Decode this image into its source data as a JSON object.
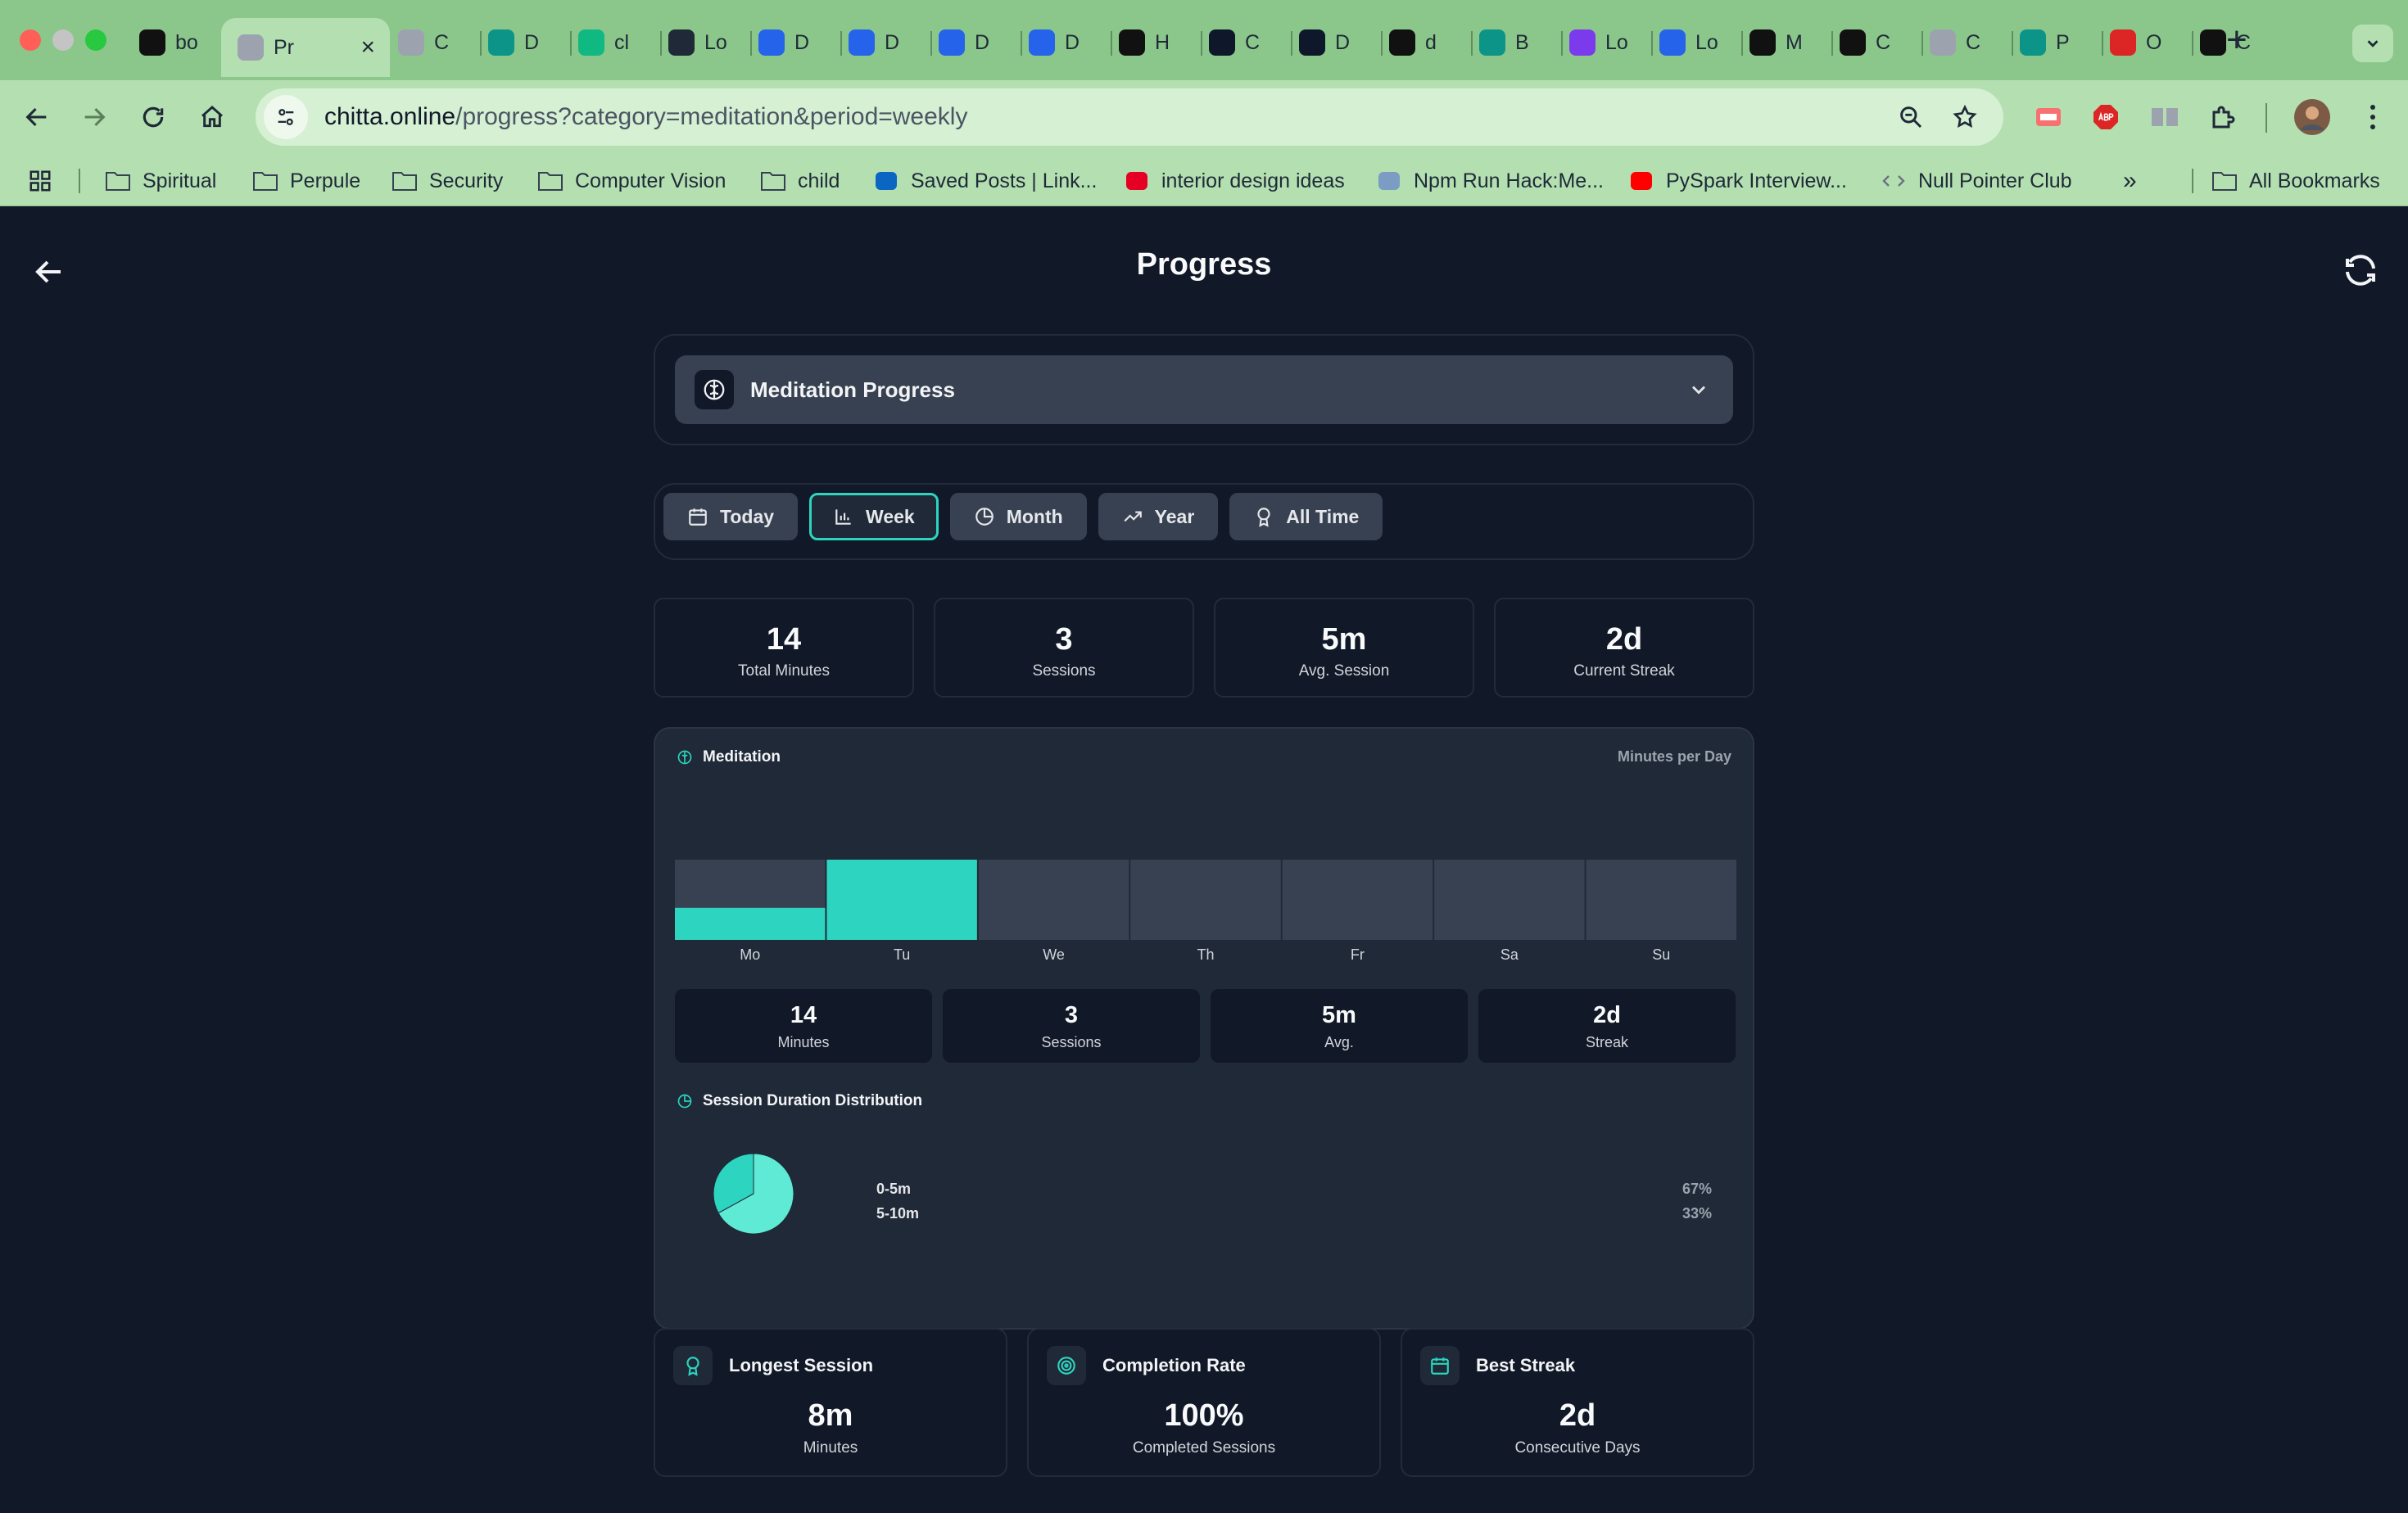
{
  "browser": {
    "tabs": [
      {
        "title": "bo",
        "icon": "b-logo-icon",
        "color": "#111111"
      },
      {
        "title": "Pr",
        "icon": "page-icon",
        "color": "#9ca3af",
        "active": true
      },
      {
        "title": "C",
        "icon": "link-icon",
        "color": "#9ca3af"
      },
      {
        "title": "D",
        "icon": "diamond-icon",
        "color": "#0d9488"
      },
      {
        "title": "cl",
        "icon": "bolt-icon",
        "color": "#10b981"
      },
      {
        "title": "Lo",
        "icon": "openai-icon",
        "color": "#1f2937"
      },
      {
        "title": "D",
        "icon": "devin-icon",
        "color": "#2563eb"
      },
      {
        "title": "D",
        "icon": "devin-icon",
        "color": "#2563eb"
      },
      {
        "title": "D",
        "icon": "devin-icon",
        "color": "#2563eb"
      },
      {
        "title": "D",
        "icon": "devin-icon",
        "color": "#2563eb"
      },
      {
        "title": "H",
        "icon": "notion-icon",
        "color": "#111111"
      },
      {
        "title": "C",
        "icon": "d-circle-icon",
        "color": "#0f172a"
      },
      {
        "title": "D",
        "icon": "d-circle-icon",
        "color": "#0f172a"
      },
      {
        "title": "d",
        "icon": "github-icon",
        "color": "#111111"
      },
      {
        "title": "B",
        "icon": "diamond-icon",
        "color": "#0d9488"
      },
      {
        "title": "Lo",
        "icon": "knot-icon",
        "color": "#7c3aed"
      },
      {
        "title": "Lo",
        "icon": "ak-icon",
        "color": "#2563eb"
      },
      {
        "title": "M",
        "icon": "b-circle-icon",
        "color": "#111111"
      },
      {
        "title": "C",
        "icon": "github-icon",
        "color": "#111111"
      },
      {
        "title": "C",
        "icon": "link-icon",
        "color": "#9ca3af"
      },
      {
        "title": "P",
        "icon": "diamond-icon",
        "color": "#0d9488"
      },
      {
        "title": "O",
        "icon": "rc-icon",
        "color": "#dc2626"
      },
      {
        "title": "C",
        "icon": "pause-icon",
        "color": "#111111"
      }
    ],
    "url": {
      "host": "chitta.online",
      "path": "/progress?category=meditation&period=weekly"
    },
    "bookmarks": [
      {
        "label": "Spiritual",
        "icon": "folder-icon"
      },
      {
        "label": "Perpule",
        "icon": "folder-icon"
      },
      {
        "label": "Security",
        "icon": "folder-icon"
      },
      {
        "label": "Computer Vision",
        "icon": "folder-icon"
      },
      {
        "label": "child",
        "icon": "folder-icon"
      },
      {
        "label": "Saved Posts | Link...",
        "icon": "linkedin-icon"
      },
      {
        "label": "interior design ideas",
        "icon": "pinterest-icon"
      },
      {
        "label": "Npm Run Hack:Me...",
        "icon": "mosquito-icon"
      },
      {
        "label": "PySpark Interview...",
        "icon": "youtube-icon"
      },
      {
        "label": "Null Pointer Club",
        "icon": "code-icon"
      },
      {
        "label": "All Bookmarks",
        "icon": "folder-icon"
      }
    ],
    "overflow_label": "»",
    "new_tab_label": "+"
  },
  "header": {
    "title": "Progress"
  },
  "category": {
    "label": "Meditation Progress",
    "icon": "brain-icon"
  },
  "periods": [
    {
      "label": "Today",
      "icon": "calendar-icon"
    },
    {
      "label": "Week",
      "icon": "bar-chart-icon",
      "active": true
    },
    {
      "label": "Month",
      "icon": "clock-icon"
    },
    {
      "label": "Year",
      "icon": "trending-up-icon"
    },
    {
      "label": "All Time",
      "icon": "award-icon"
    }
  ],
  "summary": [
    {
      "value": "14",
      "label": "Total Minutes"
    },
    {
      "value": "3",
      "label": "Sessions"
    },
    {
      "value": "5m",
      "label": "Avg. Session"
    },
    {
      "value": "2d",
      "label": "Current Streak"
    }
  ],
  "meditation_section": {
    "title": "Meditation",
    "note": "Minutes per Day",
    "stats": [
      {
        "value": "14",
        "label": "Minutes"
      },
      {
        "value": "3",
        "label": "Sessions"
      },
      {
        "value": "5m",
        "label": "Avg."
      },
      {
        "value": "2d",
        "label": "Streak"
      }
    ]
  },
  "distribution": {
    "title": "Session Duration Distribution",
    "items": [
      {
        "label": "0-5m",
        "percent_label": "67%"
      },
      {
        "label": "5-10m",
        "percent_label": "33%"
      }
    ]
  },
  "highlights": [
    {
      "title": "Longest Session",
      "value": "8m",
      "label": "Minutes",
      "icon": "award-icon"
    },
    {
      "title": "Completion Rate",
      "value": "100%",
      "label": "Completed Sessions",
      "icon": "target-icon"
    },
    {
      "title": "Best Streak",
      "value": "2d",
      "label": "Consecutive Days",
      "icon": "calendar-icon"
    }
  ],
  "colors": {
    "accent": "#2dd4bf",
    "accent_light": "#5eead4",
    "bar_track": "#374151",
    "panel": "#1f2937",
    "background": "#111827"
  },
  "chart_data": [
    {
      "type": "bar",
      "categories": [
        "Mo",
        "Tu",
        "We",
        "Th",
        "Fr",
        "Sa",
        "Su"
      ],
      "values": [
        4,
        10,
        0,
        0,
        0,
        0,
        0
      ],
      "ylim": [
        0,
        10
      ],
      "grid": false,
      "legend": "none"
    },
    {
      "type": "pie",
      "categories": [
        "0-5m",
        "5-10m"
      ],
      "values": [
        67,
        33
      ],
      "colors": [
        "#5eead4",
        "#2dd4bf"
      ]
    }
  ]
}
